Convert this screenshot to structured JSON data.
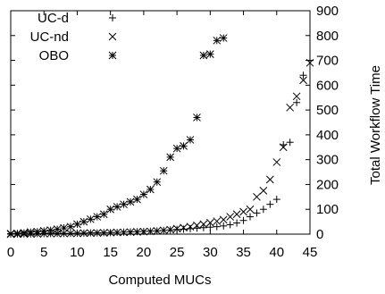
{
  "chart_data": {
    "type": "scatter",
    "title": "",
    "xlabel": "Computed MUCs",
    "ylabel": "Total Workflow Time",
    "xlim": [
      0,
      45
    ],
    "ylim": [
      0,
      900
    ],
    "xticks": [
      0,
      5,
      10,
      15,
      20,
      25,
      30,
      35,
      40,
      45
    ],
    "yticks": [
      0,
      100,
      200,
      300,
      400,
      500,
      600,
      700,
      800,
      900
    ],
    "legend_position": "top-left",
    "y_axis_side": "right",
    "grid": false,
    "series": [
      {
        "name": "UC-d",
        "marker": "plus",
        "x": [
          0,
          1,
          2,
          3,
          4,
          5,
          6,
          7,
          8,
          9,
          10,
          11,
          12,
          13,
          14,
          15,
          16,
          17,
          18,
          19,
          20,
          21,
          22,
          23,
          24,
          25,
          26,
          27,
          28,
          29,
          30,
          31,
          32,
          33,
          34,
          35,
          36,
          37,
          38,
          39,
          40,
          41,
          42,
          43,
          44,
          45
        ],
        "y": [
          0,
          1,
          1,
          1,
          2,
          2,
          2,
          3,
          3,
          3,
          4,
          4,
          5,
          5,
          6,
          6,
          7,
          8,
          9,
          10,
          11,
          12,
          13,
          15,
          17,
          19,
          20,
          22,
          24,
          26,
          28,
          30,
          33,
          38,
          45,
          55,
          70,
          85,
          100,
          120,
          140,
          360,
          370,
          530,
          640,
          700
        ]
      },
      {
        "name": "UC-nd",
        "marker": "cross",
        "x": [
          0,
          1,
          2,
          3,
          4,
          5,
          6,
          7,
          8,
          9,
          10,
          11,
          12,
          13,
          14,
          15,
          16,
          17,
          18,
          19,
          20,
          21,
          22,
          23,
          24,
          25,
          26,
          27,
          28,
          29,
          30,
          31,
          32,
          33,
          34,
          35,
          36,
          37,
          38,
          39,
          40,
          41,
          42,
          43,
          44,
          45
        ],
        "y": [
          0,
          0,
          1,
          1,
          1,
          2,
          2,
          2,
          3,
          3,
          3,
          4,
          4,
          5,
          5,
          6,
          7,
          7,
          8,
          9,
          10,
          11,
          13,
          15,
          18,
          22,
          26,
          30,
          35,
          40,
          46,
          52,
          58,
          70,
          80,
          90,
          100,
          150,
          175,
          220,
          290,
          350,
          510,
          555,
          620,
          690
        ]
      },
      {
        "name": "OBO",
        "marker": "asterisk",
        "x": [
          0,
          1,
          2,
          3,
          4,
          5,
          6,
          7,
          8,
          9,
          10,
          11,
          12,
          13,
          14,
          15,
          16,
          17,
          18,
          19,
          20,
          21,
          22,
          23,
          24,
          25,
          26,
          27,
          28,
          29,
          30,
          31,
          32
        ],
        "y": [
          2,
          3,
          5,
          8,
          10,
          13,
          16,
          20,
          25,
          30,
          40,
          50,
          60,
          70,
          80,
          100,
          110,
          120,
          130,
          140,
          160,
          180,
          210,
          255,
          310,
          345,
          355,
          380,
          470,
          720,
          725,
          780,
          790
        ]
      }
    ]
  }
}
